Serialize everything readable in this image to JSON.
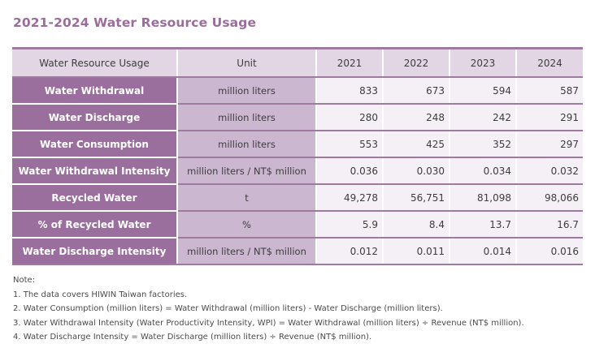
{
  "title": "2021-2024 Water Resource Usage",
  "table": {
    "headers": {
      "label": "Water Resource Usage",
      "unit": "Unit",
      "years": [
        "2021",
        "2022",
        "2023",
        "2024"
      ]
    },
    "rows": [
      {
        "label": "Water Withdrawal",
        "unit": "million liters",
        "values": [
          "833",
          "673",
          "594",
          "587"
        ]
      },
      {
        "label": "Water Discharge",
        "unit": "million liters",
        "values": [
          "280",
          "248",
          "242",
          "291"
        ]
      },
      {
        "label": "Water Consumption",
        "unit": "million liters",
        "values": [
          "553",
          "425",
          "352",
          "297"
        ]
      },
      {
        "label": "Water Withdrawal Intensity",
        "unit": "million liters / NT$ million",
        "values": [
          "0.036",
          "0.030",
          "0.034",
          "0.032"
        ]
      },
      {
        "label": "Recycled Water",
        "unit": "t",
        "values": [
          "49,278",
          "56,751",
          "81,098",
          "98,066"
        ]
      },
      {
        "label": "% of Recycled Water",
        "unit": "%",
        "values": [
          "5.9",
          "8.4",
          "13.7",
          "16.7"
        ]
      },
      {
        "label": "Water Discharge Intensity",
        "unit": "million liters / NT$ million",
        "values": [
          "0.012",
          "0.011",
          "0.014",
          "0.016"
        ]
      }
    ]
  },
  "notes": {
    "heading": "Note:",
    "items": [
      "1. The data covers HIWIN Taiwan factories.",
      "2. Water Consumption (million liters) = Water Withdrawal (million liters) - Water Discharge (million liters).",
      "3. Water Withdrawal Intensity (Water Productivity Intensity, WPI) = Water Withdrawal (million liters) ÷ Revenue (NT$ million).",
      "4. Water Discharge Intensity = Water Discharge (million liters) ÷ Revenue (NT$ million)."
    ]
  },
  "colors": {
    "title": "#9a6d9b",
    "header_bg": "#e2d6e5",
    "label_bg": "#9a6f9d",
    "unit_bg": "#ccb7d1",
    "value_bg": "#f4f0f5",
    "rule": "#9c7b9f"
  }
}
